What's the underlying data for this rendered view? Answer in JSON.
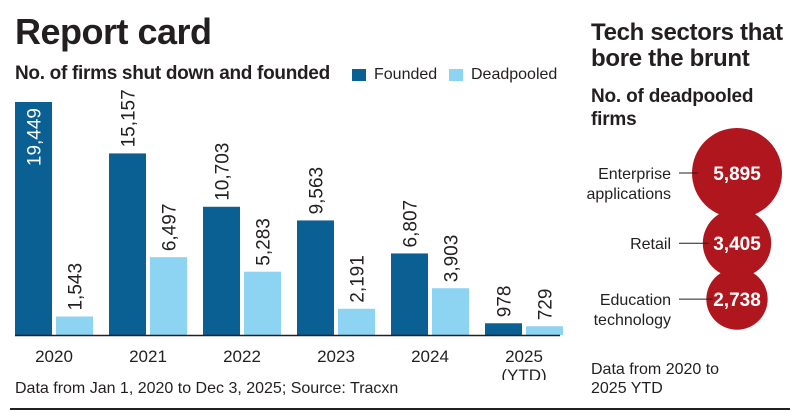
{
  "left_panel": {
    "title": "Report card",
    "subtitle": "No. of firms shut down and founded",
    "legend": [
      {
        "label": "Founded",
        "color": "#0a5f93"
      },
      {
        "label": "Deadpooled",
        "color": "#8dd3f2"
      }
    ],
    "footnote": "Data from Jan 1, 2020 to Dec 3, 2025; Source: Tracxn"
  },
  "right_panel": {
    "title": "Tech sectors that bore the brunt",
    "subtitle": "No. of deadpooled firms",
    "bubble_color": "#b0161e",
    "note": "Data from 2020 to 2025 YTD"
  },
  "chart_data": [
    {
      "type": "bar",
      "title": "Report card",
      "subtitle": "No. of firms shut down and founded",
      "categories": [
        "2020",
        "2021",
        "2022",
        "2023",
        "2024",
        "2025\n(YTD)"
      ],
      "category_lines": [
        [
          "2020"
        ],
        [
          "2021"
        ],
        [
          "2022"
        ],
        [
          "2023"
        ],
        [
          "2024"
        ],
        [
          "2025",
          "(YTD)"
        ]
      ],
      "series": [
        {
          "name": "Founded",
          "color": "#0a5f93",
          "values": [
            19449,
            15157,
            10703,
            9563,
            6807,
            978
          ],
          "labels": [
            "19,449",
            "15,157",
            "10,703",
            "9,563",
            "6,807",
            "978"
          ]
        },
        {
          "name": "Deadpooled",
          "color": "#8dd3f2",
          "values": [
            1543,
            6497,
            5283,
            2191,
            3903,
            729
          ],
          "labels": [
            "1,543",
            "6,497",
            "5,283",
            "2,191",
            "3,903",
            "729"
          ]
        }
      ],
      "xlabel": "",
      "ylabel": "",
      "ylim": [
        0,
        19449
      ],
      "grid": false,
      "legend_position": "top-right",
      "source": "Data from Jan 1, 2020 to Dec 3, 2025; Source: Tracxn"
    },
    {
      "type": "bubble",
      "title": "Tech sectors that bore the brunt",
      "subtitle": "No. of deadpooled firms",
      "categories": [
        [
          "Enterprise",
          "applications"
        ],
        [
          "Retail"
        ],
        [
          "Education",
          "technology"
        ]
      ],
      "category_names": [
        "Enterprise applications",
        "Retail",
        "Education technology"
      ],
      "values": [
        5895,
        3405,
        2738
      ],
      "labels": [
        "5,895",
        "3,405",
        "2,738"
      ],
      "note": "Data from 2020 to 2025 YTD"
    }
  ]
}
